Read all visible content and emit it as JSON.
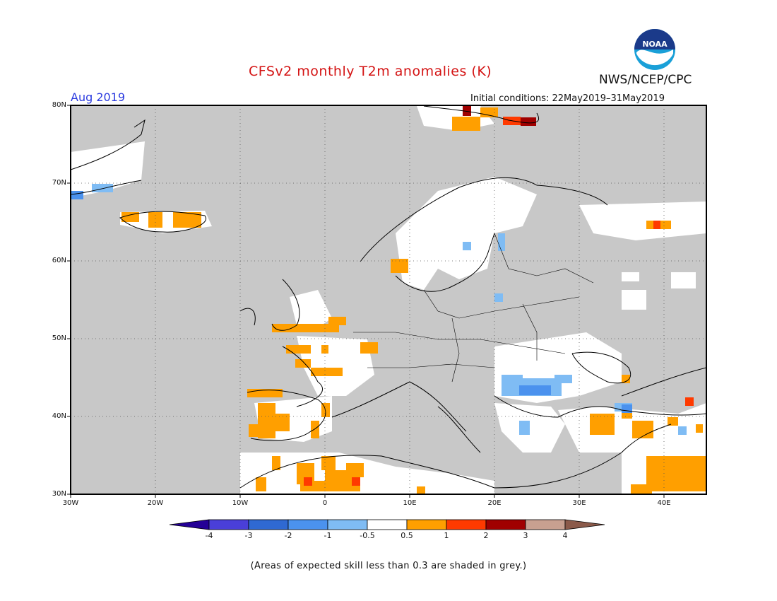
{
  "header": {
    "title": "CFSv2 monthly T2m anomalies (K)",
    "agency": "NWS/NCEP/CPC",
    "month": "Aug 2019",
    "initial_conditions": "Initial conditions: 22May2019–31May2019",
    "logo_text": "NOAA"
  },
  "map": {
    "lon_range": [
      -30,
      45
    ],
    "lat_range": [
      30,
      80
    ],
    "y_ticks": [
      "80N",
      "70N",
      "60N",
      "50N",
      "40N",
      "30N"
    ],
    "x_ticks": [
      "30W",
      "20W",
      "10W",
      "0",
      "10E",
      "20E",
      "30E",
      "40E"
    ],
    "background_color": "#c8c8c8",
    "grid": "dotted"
  },
  "colorbar": {
    "labels": [
      "-4",
      "-3",
      "-2",
      "-1",
      "-0.5",
      "0.5",
      "1",
      "2",
      "3",
      "4"
    ],
    "colors": [
      "#240096",
      "#4a3fd8",
      "#2f69d2",
      "#4b92ee",
      "#7fbcf4",
      "#ffffff",
      "#ff9f00",
      "#ff3a00",
      "#a00000",
      "#c8a090",
      "#8b5a4a"
    ]
  },
  "footer": "(Areas of expected skill less than 0.3 are shaded in grey.)"
}
